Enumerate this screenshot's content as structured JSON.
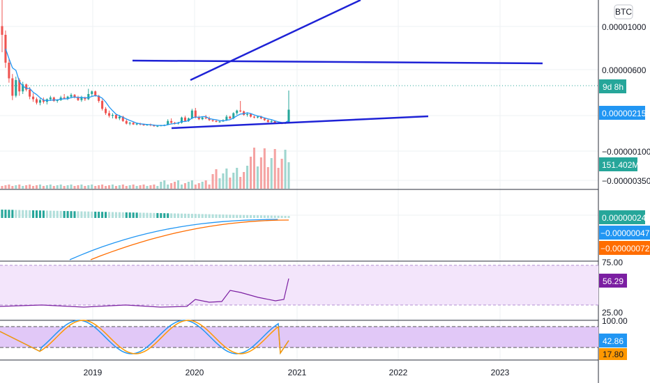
{
  "chart_data": {
    "type": "candlestick",
    "currency_badge": "BTC",
    "x_axis": {
      "ticks": [
        "2019",
        "2020",
        "2021",
        "2022",
        "2023"
      ]
    },
    "price_panel": {
      "y_ticks": [
        "0.00001000",
        "0.00000600",
        "−0.00000100",
        "−0.00000350"
      ],
      "last_value_label": "0.00000215",
      "countdown_label": "9d 8h",
      "volume_label": "151.402M",
      "colors": {
        "up": "#26a69a",
        "down": "#ef5350",
        "ma": "#2196f3",
        "trendline": "#1e22d6"
      }
    },
    "macd_panel": {
      "labels": [
        "0.00000024",
        "−0.00000047",
        "−0.00000072"
      ],
      "colors": {
        "histogram_up": "#26a69a",
        "histogram_up_light": "#b2dfdb",
        "macd": "#2196f3",
        "signal": "#ff6d00"
      }
    },
    "rsi_panel": {
      "ticks": [
        "75.00",
        "25.00"
      ],
      "value_label": "56.29",
      "colors": {
        "line": "#7b1fa2",
        "band": "#f3e5fb"
      }
    },
    "stoch_panel": {
      "ticks": [
        "100.00"
      ],
      "k_label": "42.86",
      "d_label": "17.80",
      "colors": {
        "k": "#2196f3",
        "d": "#ff9800",
        "band": "#e1c8f7"
      }
    },
    "candles": [
      [
        1.3,
        1.6,
        1.0,
        1.2
      ],
      [
        1.2,
        1.25,
        0.82,
        0.88
      ],
      [
        0.88,
        0.92,
        0.65,
        0.7
      ],
      [
        0.7,
        0.75,
        0.45,
        0.5
      ],
      [
        0.5,
        0.72,
        0.48,
        0.68
      ],
      [
        0.68,
        0.7,
        0.5,
        0.55
      ],
      [
        0.55,
        0.66,
        0.52,
        0.63
      ],
      [
        0.63,
        0.64,
        0.55,
        0.57
      ],
      [
        0.57,
        0.6,
        0.46,
        0.49
      ],
      [
        0.49,
        0.53,
        0.43,
        0.46
      ],
      [
        0.46,
        0.48,
        0.4,
        0.42
      ],
      [
        0.42,
        0.47,
        0.39,
        0.45
      ],
      [
        0.45,
        0.48,
        0.41,
        0.43
      ],
      [
        0.43,
        0.47,
        0.4,
        0.46
      ],
      [
        0.46,
        0.5,
        0.44,
        0.48
      ],
      [
        0.48,
        0.49,
        0.43,
        0.44
      ],
      [
        0.44,
        0.46,
        0.42,
        0.45
      ],
      [
        0.45,
        0.5,
        0.44,
        0.48
      ],
      [
        0.48,
        0.52,
        0.46,
        0.47
      ],
      [
        0.47,
        0.5,
        0.45,
        0.49
      ],
      [
        0.49,
        0.53,
        0.47,
        0.51
      ],
      [
        0.51,
        0.52,
        0.47,
        0.48
      ],
      [
        0.48,
        0.5,
        0.44,
        0.45
      ],
      [
        0.45,
        0.5,
        0.43,
        0.48
      ],
      [
        0.48,
        0.49,
        0.44,
        0.46
      ],
      [
        0.46,
        0.58,
        0.45,
        0.52
      ],
      [
        0.52,
        0.56,
        0.49,
        0.55
      ],
      [
        0.55,
        0.56,
        0.49,
        0.5
      ],
      [
        0.5,
        0.51,
        0.42,
        0.44
      ],
      [
        0.44,
        0.46,
        0.33,
        0.35
      ],
      [
        0.35,
        0.37,
        0.28,
        0.3
      ],
      [
        0.3,
        0.33,
        0.25,
        0.27
      ],
      [
        0.27,
        0.3,
        0.24,
        0.28
      ],
      [
        0.28,
        0.29,
        0.23,
        0.24
      ],
      [
        0.24,
        0.28,
        0.22,
        0.26
      ],
      [
        0.26,
        0.27,
        0.2,
        0.21
      ],
      [
        0.21,
        0.23,
        0.17,
        0.18
      ],
      [
        0.18,
        0.2,
        0.16,
        0.19
      ],
      [
        0.19,
        0.2,
        0.165,
        0.17
      ],
      [
        0.17,
        0.19,
        0.16,
        0.18
      ],
      [
        0.18,
        0.19,
        0.16,
        0.17
      ],
      [
        0.17,
        0.18,
        0.155,
        0.16
      ],
      [
        0.16,
        0.175,
        0.155,
        0.17
      ],
      [
        0.17,
        0.18,
        0.15,
        0.16
      ],
      [
        0.16,
        0.17,
        0.145,
        0.15
      ],
      [
        0.15,
        0.16,
        0.14,
        0.155
      ],
      [
        0.155,
        0.165,
        0.15,
        0.16
      ],
      [
        0.16,
        0.17,
        0.15,
        0.165
      ],
      [
        0.165,
        0.23,
        0.16,
        0.21
      ],
      [
        0.21,
        0.24,
        0.18,
        0.19
      ],
      [
        0.19,
        0.2,
        0.17,
        0.18
      ],
      [
        0.18,
        0.2,
        0.17,
        0.19
      ],
      [
        0.19,
        0.26,
        0.18,
        0.25
      ],
      [
        0.25,
        0.27,
        0.2,
        0.21
      ],
      [
        0.21,
        0.25,
        0.2,
        0.24
      ],
      [
        0.24,
        0.35,
        0.23,
        0.33
      ],
      [
        0.33,
        0.36,
        0.24,
        0.25
      ],
      [
        0.25,
        0.27,
        0.22,
        0.23
      ],
      [
        0.23,
        0.26,
        0.22,
        0.25
      ],
      [
        0.25,
        0.28,
        0.23,
        0.24
      ],
      [
        0.24,
        0.26,
        0.21,
        0.22
      ],
      [
        0.22,
        0.23,
        0.2,
        0.21
      ],
      [
        0.21,
        0.22,
        0.195,
        0.2
      ],
      [
        0.2,
        0.21,
        0.19,
        0.205
      ],
      [
        0.205,
        0.23,
        0.2,
        0.22
      ],
      [
        0.22,
        0.28,
        0.21,
        0.26
      ],
      [
        0.26,
        0.27,
        0.23,
        0.24
      ],
      [
        0.24,
        0.31,
        0.23,
        0.3
      ],
      [
        0.3,
        0.34,
        0.28,
        0.33
      ],
      [
        0.33,
        0.44,
        0.31,
        0.32
      ],
      [
        0.32,
        0.33,
        0.27,
        0.28
      ],
      [
        0.28,
        0.31,
        0.26,
        0.29
      ],
      [
        0.29,
        0.3,
        0.25,
        0.26
      ],
      [
        0.26,
        0.27,
        0.24,
        0.25
      ],
      [
        0.25,
        0.27,
        0.24,
        0.26
      ],
      [
        0.26,
        0.27,
        0.23,
        0.24
      ],
      [
        0.24,
        0.25,
        0.21,
        0.22
      ],
      [
        0.22,
        0.23,
        0.19,
        0.2
      ],
      [
        0.2,
        0.22,
        0.185,
        0.21
      ],
      [
        0.21,
        0.215,
        0.185,
        0.19
      ],
      [
        0.19,
        0.2,
        0.18,
        0.185
      ],
      [
        0.185,
        0.19,
        0.175,
        0.18
      ],
      [
        0.18,
        0.2,
        0.175,
        0.19
      ],
      [
        0.19,
        0.56,
        0.185,
        0.34
      ]
    ]
  }
}
